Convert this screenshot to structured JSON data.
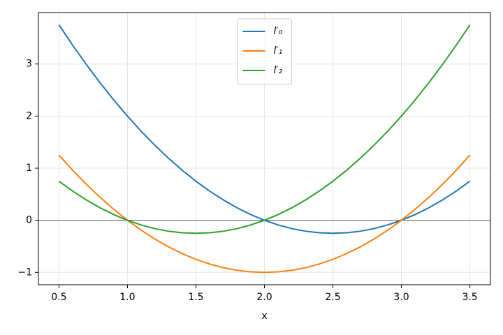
{
  "chart_data": {
    "type": "line",
    "x_label": "x",
    "x": [
      0.5,
      0.6,
      0.7,
      0.8,
      0.9,
      1.0,
      1.1,
      1.2,
      1.3,
      1.4,
      1.5,
      1.6,
      1.7,
      1.8,
      1.9,
      2.0,
      2.1,
      2.2,
      2.3,
      2.4,
      2.5,
      2.6,
      2.7,
      2.8,
      2.9,
      3.0,
      3.1,
      3.2,
      3.3,
      3.4,
      3.5
    ],
    "series": [
      {
        "name": "l′₀",
        "color": "#1f77b4",
        "values": [
          3.75,
          3.36,
          2.99,
          2.64,
          2.31,
          2,
          1.71,
          1.44,
          1.19,
          0.96,
          0.75,
          0.56,
          0.39,
          0.24,
          0.11,
          0,
          -0.09,
          -0.16,
          -0.21,
          -0.24,
          -0.25,
          -0.24,
          -0.21,
          -0.16,
          -0.09,
          0,
          0.11,
          0.24,
          0.39,
          0.56,
          0.75
        ]
      },
      {
        "name": "l′₁",
        "color": "#ff7f0e",
        "values": [
          1.25,
          0.96,
          0.69,
          0.44,
          0.21,
          0,
          -0.19,
          -0.36,
          -0.51,
          -0.64,
          -0.75,
          -0.84,
          -0.91,
          -0.96,
          -0.99,
          -1,
          -0.99,
          -0.96,
          -0.91,
          -0.84,
          -0.75,
          -0.64,
          -0.51,
          -0.36,
          -0.19,
          0,
          0.21,
          0.44,
          0.69,
          0.96,
          1.25
        ]
      },
      {
        "name": "l′₂",
        "color": "#2ca02c",
        "values": [
          0.75,
          0.56,
          0.39,
          0.24,
          0.11,
          0,
          -0.09,
          -0.16,
          -0.21,
          -0.24,
          -0.25,
          -0.24,
          -0.21,
          -0.16,
          -0.09,
          0,
          0.11,
          0.24,
          0.39,
          0.56,
          0.75,
          0.96,
          1.19,
          1.44,
          1.71,
          2,
          2.31,
          2.64,
          2.99,
          3.36,
          3.75
        ]
      }
    ],
    "xlim": [
      0.35,
      3.65
    ],
    "ylim": [
      -1.2375,
      3.9875
    ],
    "xticks": [
      0.5,
      {
        "value": 1,
        "label": "1.0"
      },
      1.5,
      {
        "value": 2,
        "label": "2.0"
      },
      2.5,
      {
        "value": 3,
        "label": "3.0"
      },
      3.5
    ],
    "yticks": [
      {
        "value": -1,
        "label": "−1"
      },
      0,
      1,
      2,
      3
    ],
    "hline": 0,
    "hline_color": "#808080",
    "grid": true,
    "legend": "upper center"
  }
}
